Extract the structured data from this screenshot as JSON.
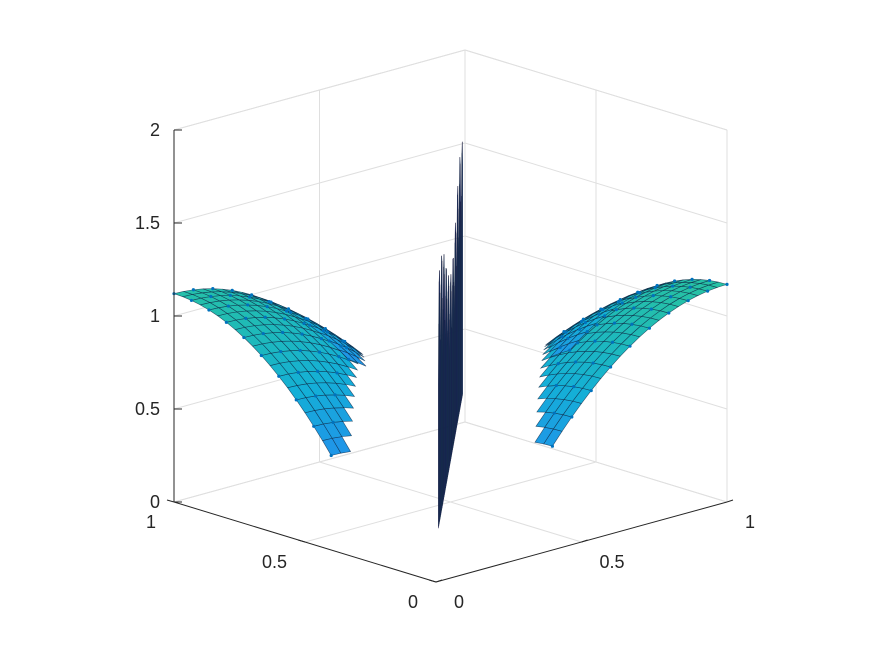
{
  "chart_data": {
    "type": "surface3d",
    "title": "",
    "xlabel": "",
    "ylabel": "",
    "zlabel": "",
    "xlim": [
      0,
      1
    ],
    "ylim": [
      0,
      1
    ],
    "zlim": [
      0,
      2
    ],
    "x_ticks": [
      "0",
      "0.5",
      "1"
    ],
    "y_ticks": [
      "0",
      "0.5",
      "1"
    ],
    "z_ticks": [
      "0",
      "0.5",
      "1",
      "1.5",
      "2"
    ],
    "z_tick_values": [
      0,
      0.5,
      1,
      1.5,
      2
    ],
    "grid": true,
    "colormap": "parula",
    "marker_color": "#0072BD",
    "surfaces": [
      {
        "name": "",
        "description_visible": "oscillating wall surface along the y = x diagonal between the two mounds",
        "z_range_shown": [
          0.2,
          1.65
        ]
      },
      {
        "name": "",
        "description_visible": "dotted mound surface on the corner near x = 1, y = 0, peak about z = 1.15",
        "z_peak": 1.15
      },
      {
        "name": "",
        "description_visible": "dotted mound surface on the corner near x = 0, y = 1, peak about z = 1.1",
        "z_peak": 1.1
      }
    ]
  },
  "colors": {
    "axis": "#262626",
    "grid": "#dfdfdf",
    "background": "#ffffff",
    "parula_low": "#3e26a8",
    "parula_mid": "#1aa3d6",
    "parula_high": "#f9d32c"
  }
}
